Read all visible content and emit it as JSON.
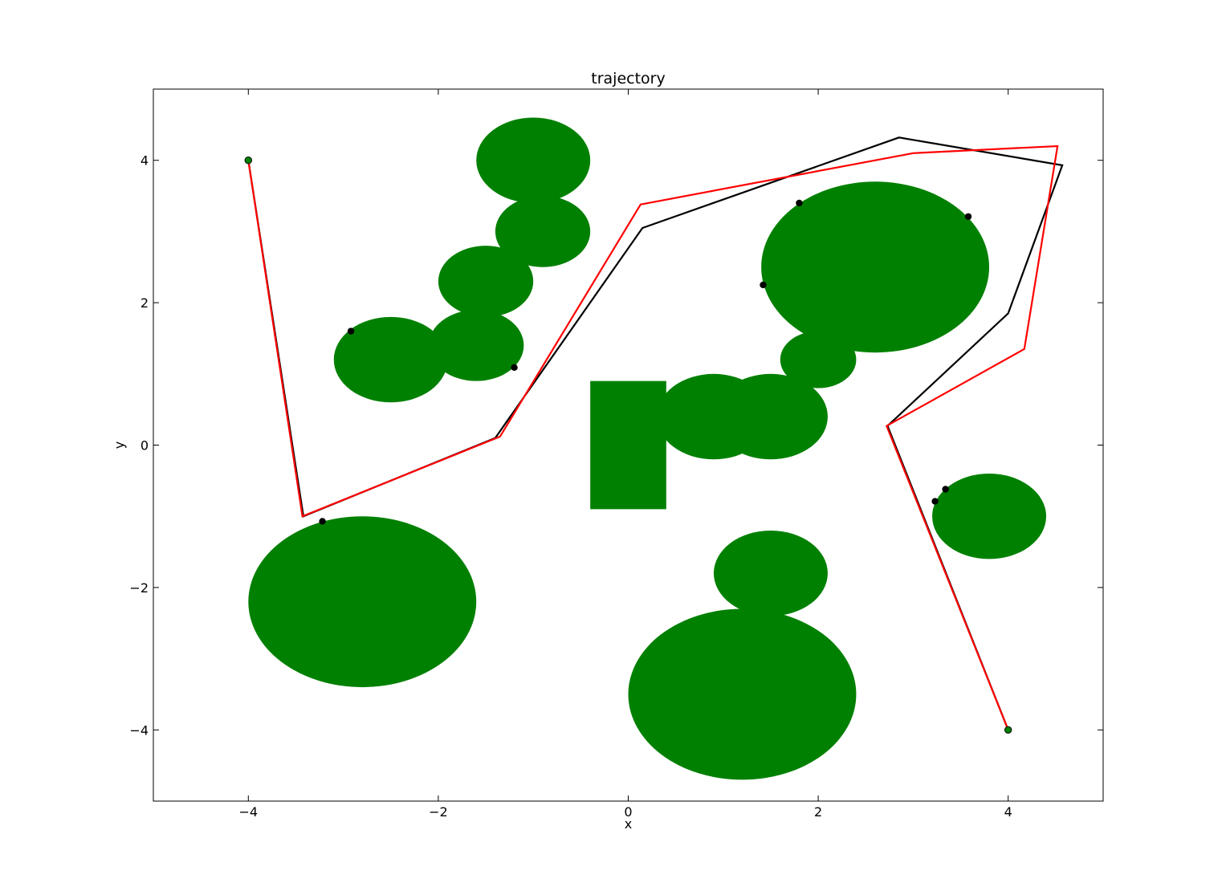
{
  "chart_data": {
    "type": "line",
    "title": "trajectory",
    "xlabel": "x",
    "ylabel": "y",
    "xlim": [
      -5,
      5
    ],
    "ylim": [
      -5,
      5
    ],
    "xticks": [
      -4,
      -2,
      0,
      2,
      4
    ],
    "yticks": [
      -4,
      -2,
      0,
      2,
      4
    ],
    "xtick_labels": [
      "−4",
      "−2",
      "0",
      "2",
      "4"
    ],
    "ytick_labels": [
      "−4",
      "−2",
      "0",
      "2",
      "4"
    ],
    "grid": false,
    "obstacle_color": "#008000",
    "obstacles": {
      "ellipses": [
        {
          "cx": -1.0,
          "cy": 4.0,
          "rx": 0.6,
          "ry": 0.6
        },
        {
          "cx": -0.9,
          "cy": 3.0,
          "rx": 0.5,
          "ry": 0.5
        },
        {
          "cx": -1.5,
          "cy": 2.3,
          "rx": 0.5,
          "ry": 0.5
        },
        {
          "cx": -1.6,
          "cy": 1.4,
          "rx": 0.5,
          "ry": 0.5
        },
        {
          "cx": -2.5,
          "cy": 1.2,
          "rx": 0.6,
          "ry": 0.6
        },
        {
          "cx": 2.6,
          "cy": 2.5,
          "rx": 1.2,
          "ry": 1.2
        },
        {
          "cx": 2.0,
          "cy": 1.2,
          "rx": 0.4,
          "ry": 0.4
        },
        {
          "cx": 0.9,
          "cy": 0.4,
          "rx": 0.6,
          "ry": 0.6
        },
        {
          "cx": 1.5,
          "cy": 0.4,
          "rx": 0.6,
          "ry": 0.6
        },
        {
          "cx": 3.8,
          "cy": -1.0,
          "rx": 0.6,
          "ry": 0.6
        },
        {
          "cx": 1.5,
          "cy": -1.8,
          "rx": 0.6,
          "ry": 0.6
        },
        {
          "cx": 1.2,
          "cy": -3.5,
          "rx": 1.2,
          "ry": 1.2
        },
        {
          "cx": -2.8,
          "cy": -2.2,
          "rx": 1.2,
          "ry": 1.2
        }
      ],
      "rectangles": [
        {
          "x0": -0.4,
          "x1": 0.4,
          "y0": -0.9,
          "y1": 0.9
        }
      ]
    },
    "series": [
      {
        "color": "#000000",
        "x": [
          -4.0,
          -3.42,
          -1.4,
          0.15,
          2.85,
          4.57,
          4.0,
          2.73,
          4.0
        ],
        "y": [
          4.0,
          -1.0,
          0.1,
          3.05,
          4.32,
          3.93,
          1.85,
          0.27,
          -4.0
        ]
      },
      {
        "color": "#ff0000",
        "x": [
          -4.0,
          -3.43,
          -1.35,
          0.13,
          3.0,
          4.52,
          4.17,
          2.72,
          4.0
        ],
        "y": [
          4.0,
          -1.0,
          0.12,
          3.38,
          4.1,
          4.2,
          1.35,
          0.27,
          -4.0
        ]
      }
    ],
    "endpoints": {
      "color": "#008000",
      "x": [
        -4.0,
        4.0
      ],
      "y": [
        4.0,
        -4.0
      ]
    },
    "black_points": {
      "color": "#000000",
      "x": [
        -2.92,
        -1.2,
        -3.22,
        1.8,
        1.42,
        3.58,
        3.34,
        3.23
      ],
      "y": [
        1.6,
        1.09,
        -1.07,
        3.4,
        2.25,
        3.21,
        -0.62,
        -0.79
      ]
    }
  }
}
